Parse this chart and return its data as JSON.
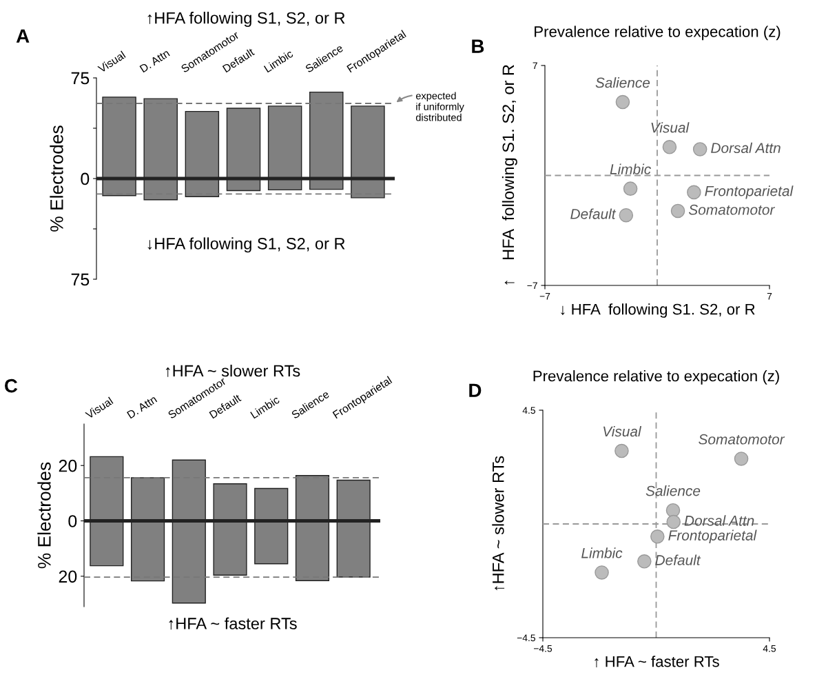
{
  "chart_data": [
    {
      "type": "bar",
      "title": "↑HFA following S1, S2, or R",
      "ylabel": "% Electrodes",
      "categories": [
        "Visual",
        "D. Attn",
        "Somatomotor",
        "Default",
        "Limbic",
        "Salience",
        "Frontoparietal"
      ],
      "stacked": true,
      "series": [
        {
          "color": "#808080",
          "values": [
            60.7,
            59.5,
            50,
            52.4,
            54,
            64.4,
            54
          ]
        },
        {
          "color": "#808080",
          "values": [
            -12.7,
            -15.8,
            -13.5,
            -9,
            -8.4,
            -8,
            -14.3
          ]
        }
      ],
      "ylim": [
        -75,
        75
      ],
      "yticks": [
        75,
        {
          "value": 37.5,
          "label": null
        },
        0,
        {
          "value": -37.5,
          "label": null
        },
        {
          "value": -75,
          "label": "75"
        }
      ],
      "ref_lines": [
        {
          "axis": "y",
          "value": 56,
          "label": "expected\nif uniformly\ndistributed",
          "color": "#777777",
          "line_style": "dashed"
        },
        {
          "axis": "y",
          "value": -11.5,
          "color": "#777777",
          "line_style": "dashed"
        },
        {
          "axis": "y",
          "value": 0,
          "color": "#222222",
          "line_style": "solid"
        }
      ],
      "annotations": [
        "A",
        "↓HFA following S1, S2, or R"
      ],
      "grid": false,
      "legend": false
    },
    {
      "type": "scatter",
      "title": "Prevalence relative to expecation (z)",
      "xlabel": "↓ HFA  following S1. S2, or R",
      "ylabel": "↑    HFA  following S1. S2, or R",
      "series": [
        {
          "color": "#bbbbbb",
          "x": [
            -2.15,
            0.77,
            2.67,
            -1.67,
            2.29,
            1.29,
            -1.94
          ],
          "values": [
            4.67,
            1.81,
            1.67,
            -0.84,
            -1.07,
            -2.26,
            -2.53
          ]
        }
      ],
      "xlim": [
        -7,
        7
      ],
      "ylim": [
        -7,
        7
      ],
      "xticks": [
        {
          "value": -7,
          "label": "−7"
        },
        7
      ],
      "yticks": [
        {
          "value": -7,
          "label": "−7"
        },
        7
      ],
      "ref_lines": [
        {
          "axis": "x",
          "value": 0,
          "color": "#999999",
          "line_style": "dashed"
        },
        {
          "axis": "y",
          "value": 0,
          "color": "#999999",
          "line_style": "dashed"
        }
      ],
      "annotations": [
        "B",
        {
          "text": "Salience",
          "x": -2.15,
          "y": 4.67
        },
        {
          "text": "Visual",
          "x": 0.77,
          "y": 1.81
        },
        {
          "text": "Dorsal Attn",
          "x": 2.67,
          "y": 1.67
        },
        {
          "text": "Limbic",
          "x": -1.67,
          "y": -0.84
        },
        {
          "text": "Frontoparietal",
          "x": 2.29,
          "y": -1.07
        },
        {
          "text": "Somatomotor",
          "x": 1.29,
          "y": -2.26
        },
        {
          "text": "Default",
          "x": -1.94,
          "y": -2.53
        }
      ],
      "marker": "circle",
      "grid": false,
      "legend": false
    },
    {
      "type": "bar",
      "title": "↑HFA ~ slower RTs",
      "ylabel": "% Electrodes",
      "categories": [
        "Visual",
        "D. Attn",
        "Somatomotor",
        "Default",
        "Limbic",
        "Salience",
        "Frontoparietal"
      ],
      "stacked": true,
      "series": [
        {
          "color": "#808080",
          "values": [
            23.2,
            15.6,
            22,
            13.4,
            11.7,
            16.4,
            14.7
          ]
        },
        {
          "color": "#808080",
          "values": [
            -16.2,
            -21.7,
            -29.7,
            -19.6,
            -15.5,
            -21.6,
            -20.3
          ]
        }
      ],
      "ylim": [
        -31,
        35
      ],
      "yticks": [
        20,
        0,
        {
          "value": -20,
          "label": "20"
        }
      ],
      "ref_lines": [
        {
          "axis": "y",
          "value": 15.6,
          "color": "#777777",
          "line_style": "dashed"
        },
        {
          "axis": "y",
          "value": -20.3,
          "color": "#777777",
          "line_style": "dashed"
        },
        {
          "axis": "y",
          "value": 0,
          "color": "#222222",
          "line_style": "solid"
        }
      ],
      "annotations": [
        "C",
        "↑HFA ~ faster RTs"
      ],
      "grid": false,
      "legend": false
    },
    {
      "type": "scatter",
      "title": "Prevalence relative to expecation (z)",
      "xlabel": "↑ HFA ~ faster RTs",
      "ylabel": "↑HFA ~ slower RTs",
      "series": [
        {
          "color": "#bbbbbb",
          "x": [
            -1.37,
            3.38,
            0.67,
            0.69,
            0.05,
            -0.47,
            -2.16
          ],
          "values": [
            2.89,
            2.58,
            0.54,
            0.08,
            -0.5,
            -1.48,
            -1.92
          ]
        }
      ],
      "xlim": [
        -4.5,
        4.5
      ],
      "ylim": [
        -4.5,
        4.5
      ],
      "xticks": [
        {
          "value": -4.5,
          "label": "−4.5"
        },
        4.5
      ],
      "yticks": [
        {
          "value": -4.5,
          "label": "−4.5"
        },
        4.5
      ],
      "ref_lines": [
        {
          "axis": "x",
          "value": 0,
          "color": "#999999",
          "line_style": "dashed"
        },
        {
          "axis": "y",
          "value": 0,
          "color": "#999999",
          "line_style": "dashed"
        }
      ],
      "annotations": [
        "D",
        {
          "text": "Visual",
          "x": -1.37,
          "y": 2.89
        },
        {
          "text": "Somatomotor",
          "x": 3.38,
          "y": 2.58
        },
        {
          "text": "Salience",
          "x": 0.67,
          "y": 0.54
        },
        {
          "text": "Dorsal Attn",
          "x": 0.69,
          "y": 0.08
        },
        {
          "text": "Frontoparietal",
          "x": 0.05,
          "y": -0.5
        },
        {
          "text": "Default",
          "x": -0.47,
          "y": -1.48
        },
        {
          "text": "Limbic",
          "x": -2.16,
          "y": -1.92
        }
      ],
      "marker": "circle",
      "grid": false,
      "legend": false
    }
  ]
}
